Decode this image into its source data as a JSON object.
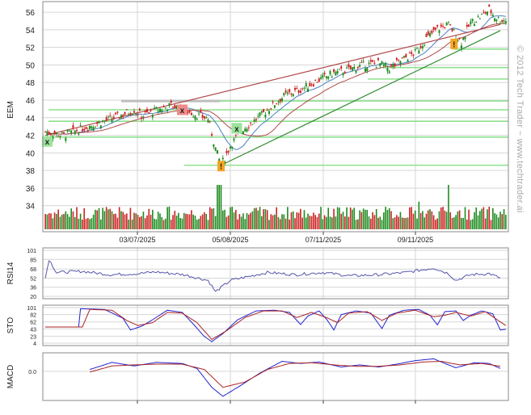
{
  "watermark": "© 2012 Tech Trader ~ www.techtrader.ai",
  "chart_data": [
    {
      "type": "candlestick",
      "ylabel": "EEM",
      "x_tick_labels": [
        "03/07/2025",
        "05/08/2025",
        "07/11/2025",
        "09/11/2025"
      ],
      "y_ticks": [
        34,
        36,
        38,
        40,
        42,
        44,
        46,
        48,
        50,
        52,
        54,
        56
      ],
      "ylim": [
        32.6,
        57.2
      ],
      "grid": true,
      "price_path": [
        [
          0,
          42.4
        ],
        [
          10,
          42.0
        ],
        [
          20,
          42.8
        ],
        [
          30,
          43.5
        ],
        [
          40,
          44.2
        ],
        [
          48,
          44.9
        ],
        [
          52,
          44.2
        ],
        [
          58,
          44.7
        ],
        [
          68,
          45.4
        ],
        [
          75,
          44.9
        ],
        [
          82,
          44.3
        ],
        [
          88,
          43.9
        ],
        [
          92,
          40.5
        ],
        [
          95,
          38.6
        ],
        [
          100,
          40.8
        ],
        [
          106,
          42.6
        ],
        [
          112,
          43.5
        ],
        [
          118,
          44.5
        ],
        [
          124,
          45.6
        ],
        [
          130,
          46.6
        ],
        [
          138,
          47.2
        ],
        [
          146,
          48.1
        ],
        [
          155,
          49.0
        ],
        [
          163,
          49.4
        ],
        [
          172,
          50.0
        ],
        [
          180,
          50.2
        ],
        [
          186,
          49.6
        ],
        [
          193,
          50.6
        ],
        [
          200,
          51.4
        ],
        [
          206,
          53.0
        ],
        [
          212,
          54.1
        ],
        [
          218,
          54.6
        ],
        [
          222,
          53.4
        ],
        [
          225,
          52.6
        ],
        [
          230,
          54.8
        ],
        [
          236,
          55.6
        ],
        [
          240,
          56.3
        ],
        [
          243,
          55.5
        ],
        [
          246,
          55.1
        ]
      ],
      "series": [
        {
          "name": "",
          "color": "#4a7fc0"
        },
        {
          "name": "",
          "color": "#b24a4a"
        }
      ],
      "signals": [
        {
          "mark": "x",
          "kind": "buy",
          "color": "#9be39b"
        },
        {
          "mark": "x",
          "kind": "sell",
          "color": "#f08a8a"
        },
        {
          "mark": "!",
          "kind": "alert",
          "color": "#f5a623"
        },
        {
          "mark": "x",
          "kind": "buy",
          "color": "#9be39b"
        },
        {
          "mark": "!",
          "kind": "alert",
          "color": "#f5a623"
        }
      ],
      "support_levels": [
        38.6,
        41.8,
        43.6,
        44.9,
        45.9,
        48.4,
        49.7,
        51.8
      ],
      "resistance_levels": [
        45.9
      ],
      "trendlines": [
        {
          "from": [
            95,
            38.6
          ],
          "to": [
            246,
            53.9
          ],
          "color": "#2e8b2e"
        },
        {
          "from": [
            0,
            42.0
          ],
          "to": [
            246,
            54.6
          ],
          "color": "#b24a4a"
        }
      ],
      "colors": {
        "up": "#1e8b1e",
        "down": "#cc2222",
        "support": "#8ee08e"
      }
    },
    {
      "type": "line",
      "ylabel": "RSI14",
      "y_ticks": [
        20,
        36,
        52,
        68,
        85,
        101
      ],
      "ylim": [
        20,
        101
      ],
      "values_path": [
        [
          0,
          52
        ],
        [
          2,
          85
        ],
        [
          6,
          62
        ],
        [
          20,
          64
        ],
        [
          35,
          58
        ],
        [
          50,
          60
        ],
        [
          60,
          63
        ],
        [
          75,
          58
        ],
        [
          88,
          48
        ],
        [
          92,
          28
        ],
        [
          100,
          48
        ],
        [
          110,
          55
        ],
        [
          120,
          62
        ],
        [
          135,
          58
        ],
        [
          150,
          62
        ],
        [
          165,
          56
        ],
        [
          180,
          58
        ],
        [
          195,
          62
        ],
        [
          210,
          70
        ],
        [
          218,
          60
        ],
        [
          222,
          48
        ],
        [
          230,
          58
        ],
        [
          240,
          60
        ],
        [
          246,
          52
        ]
      ],
      "color": "#5555aa"
    },
    {
      "type": "line",
      "ylabel": "STO",
      "y_ticks": [
        4,
        23,
        43,
        62,
        82,
        101
      ],
      "ylim": [
        4,
        101
      ],
      "series_paths": [
        {
          "name": "",
          "color": "#2222cc",
          "values": [
            [
              0,
              48
            ],
            [
              18,
              48
            ],
            [
              19,
              98
            ],
            [
              32,
              96
            ],
            [
              42,
              72
            ],
            [
              46,
              40
            ],
            [
              52,
              50
            ],
            [
              58,
              68
            ],
            [
              66,
              94
            ],
            [
              74,
              88
            ],
            [
              80,
              56
            ],
            [
              86,
              22
            ],
            [
              90,
              8
            ],
            [
              96,
              30
            ],
            [
              104,
              68
            ],
            [
              114,
              92
            ],
            [
              124,
              94
            ],
            [
              132,
              88
            ],
            [
              138,
              55
            ],
            [
              142,
              78
            ],
            [
              148,
              92
            ],
            [
              152,
              70
            ],
            [
              156,
              40
            ],
            [
              160,
              82
            ],
            [
              168,
              92
            ],
            [
              176,
              86
            ],
            [
              182,
              44
            ],
            [
              186,
              80
            ],
            [
              194,
              94
            ],
            [
              202,
              96
            ],
            [
              208,
              80
            ],
            [
              212,
              54
            ],
            [
              216,
              90
            ],
            [
              222,
              92
            ],
            [
              226,
              66
            ],
            [
              230,
              80
            ],
            [
              236,
              92
            ],
            [
              242,
              84
            ],
            [
              246,
              40
            ],
            [
              249,
              42
            ]
          ]
        },
        {
          "name": "",
          "color": "#aa2222",
          "values": [
            [
              0,
              48
            ],
            [
              20,
              48
            ],
            [
              24,
              96
            ],
            [
              36,
              94
            ],
            [
              44,
              66
            ],
            [
              50,
              52
            ],
            [
              58,
              60
            ],
            [
              66,
              88
            ],
            [
              74,
              86
            ],
            [
              82,
              60
            ],
            [
              90,
              14
            ],
            [
              98,
              38
            ],
            [
              108,
              74
            ],
            [
              118,
              92
            ],
            [
              128,
              92
            ],
            [
              136,
              74
            ],
            [
              144,
              88
            ],
            [
              152,
              74
            ],
            [
              158,
              60
            ],
            [
              164,
              86
            ],
            [
              174,
              90
            ],
            [
              182,
              66
            ],
            [
              190,
              86
            ],
            [
              200,
              94
            ],
            [
              210,
              76
            ],
            [
              216,
              80
            ],
            [
              222,
              88
            ],
            [
              230,
              78
            ],
            [
              238,
              90
            ],
            [
              246,
              62
            ],
            [
              249,
              52
            ]
          ]
        }
      ]
    },
    {
      "type": "line",
      "ylabel": "MACD",
      "y_ticks": [
        0.0
      ],
      "y_tick_labels": [
        "0.0"
      ],
      "ylim": [
        -0.75,
        0.45
      ],
      "series_paths": [
        {
          "name": "",
          "color": "#2222cc",
          "values": [
            [
              24,
              0.05
            ],
            [
              36,
              0.25
            ],
            [
              48,
              0.15
            ],
            [
              60,
              0.25
            ],
            [
              74,
              0.22
            ],
            [
              82,
              0.08
            ],
            [
              90,
              -0.45
            ],
            [
              96,
              -0.7
            ],
            [
              104,
              -0.45
            ],
            [
              116,
              -0.05
            ],
            [
              128,
              0.28
            ],
            [
              138,
              0.22
            ],
            [
              148,
              0.26
            ],
            [
              160,
              0.12
            ],
            [
              170,
              0.18
            ],
            [
              180,
              0.12
            ],
            [
              190,
              0.2
            ],
            [
              200,
              0.3
            ],
            [
              210,
              0.35
            ],
            [
              216,
              0.22
            ],
            [
              222,
              0.1
            ],
            [
              232,
              0.24
            ],
            [
              240,
              0.22
            ],
            [
              246,
              0.08
            ]
          ]
        },
        {
          "name": "",
          "color": "#aa2222",
          "values": [
            [
              24,
              -0.02
            ],
            [
              36,
              0.15
            ],
            [
              48,
              0.18
            ],
            [
              60,
              0.2
            ],
            [
              74,
              0.2
            ],
            [
              86,
              0.05
            ],
            [
              96,
              -0.45
            ],
            [
              108,
              -0.3
            ],
            [
              120,
              0.05
            ],
            [
              132,
              0.22
            ],
            [
              144,
              0.24
            ],
            [
              156,
              0.18
            ],
            [
              168,
              0.14
            ],
            [
              180,
              0.14
            ],
            [
              192,
              0.18
            ],
            [
              204,
              0.26
            ],
            [
              214,
              0.28
            ],
            [
              224,
              0.18
            ],
            [
              236,
              0.22
            ],
            [
              246,
              0.14
            ]
          ]
        }
      ]
    }
  ]
}
